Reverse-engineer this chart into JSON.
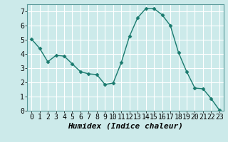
{
  "x": [
    0,
    1,
    2,
    3,
    4,
    5,
    6,
    7,
    8,
    9,
    10,
    11,
    12,
    13,
    14,
    15,
    16,
    17,
    18,
    19,
    20,
    21,
    22,
    23
  ],
  "y": [
    5.05,
    4.4,
    3.45,
    3.9,
    3.85,
    3.3,
    2.75,
    2.6,
    2.55,
    1.85,
    1.95,
    3.4,
    5.25,
    6.55,
    7.2,
    7.2,
    6.75,
    6.0,
    4.1,
    2.75,
    1.6,
    1.55,
    0.85,
    0.05
  ],
  "line_color": "#1a7a6e",
  "marker": "D",
  "marker_size": 2.5,
  "bg_color": "#cceaea",
  "grid_color": "#ffffff",
  "xlabel": "Humidex (Indice chaleur)",
  "xlabel_fontsize": 8,
  "xlim": [
    -0.5,
    23.5
  ],
  "ylim": [
    0,
    7.5
  ],
  "yticks": [
    0,
    1,
    2,
    3,
    4,
    5,
    6,
    7
  ],
  "xticks": [
    0,
    1,
    2,
    3,
    4,
    5,
    6,
    7,
    8,
    9,
    10,
    11,
    12,
    13,
    14,
    15,
    16,
    17,
    18,
    19,
    20,
    21,
    22,
    23
  ],
  "tick_fontsize": 7,
  "line_width": 1.0
}
